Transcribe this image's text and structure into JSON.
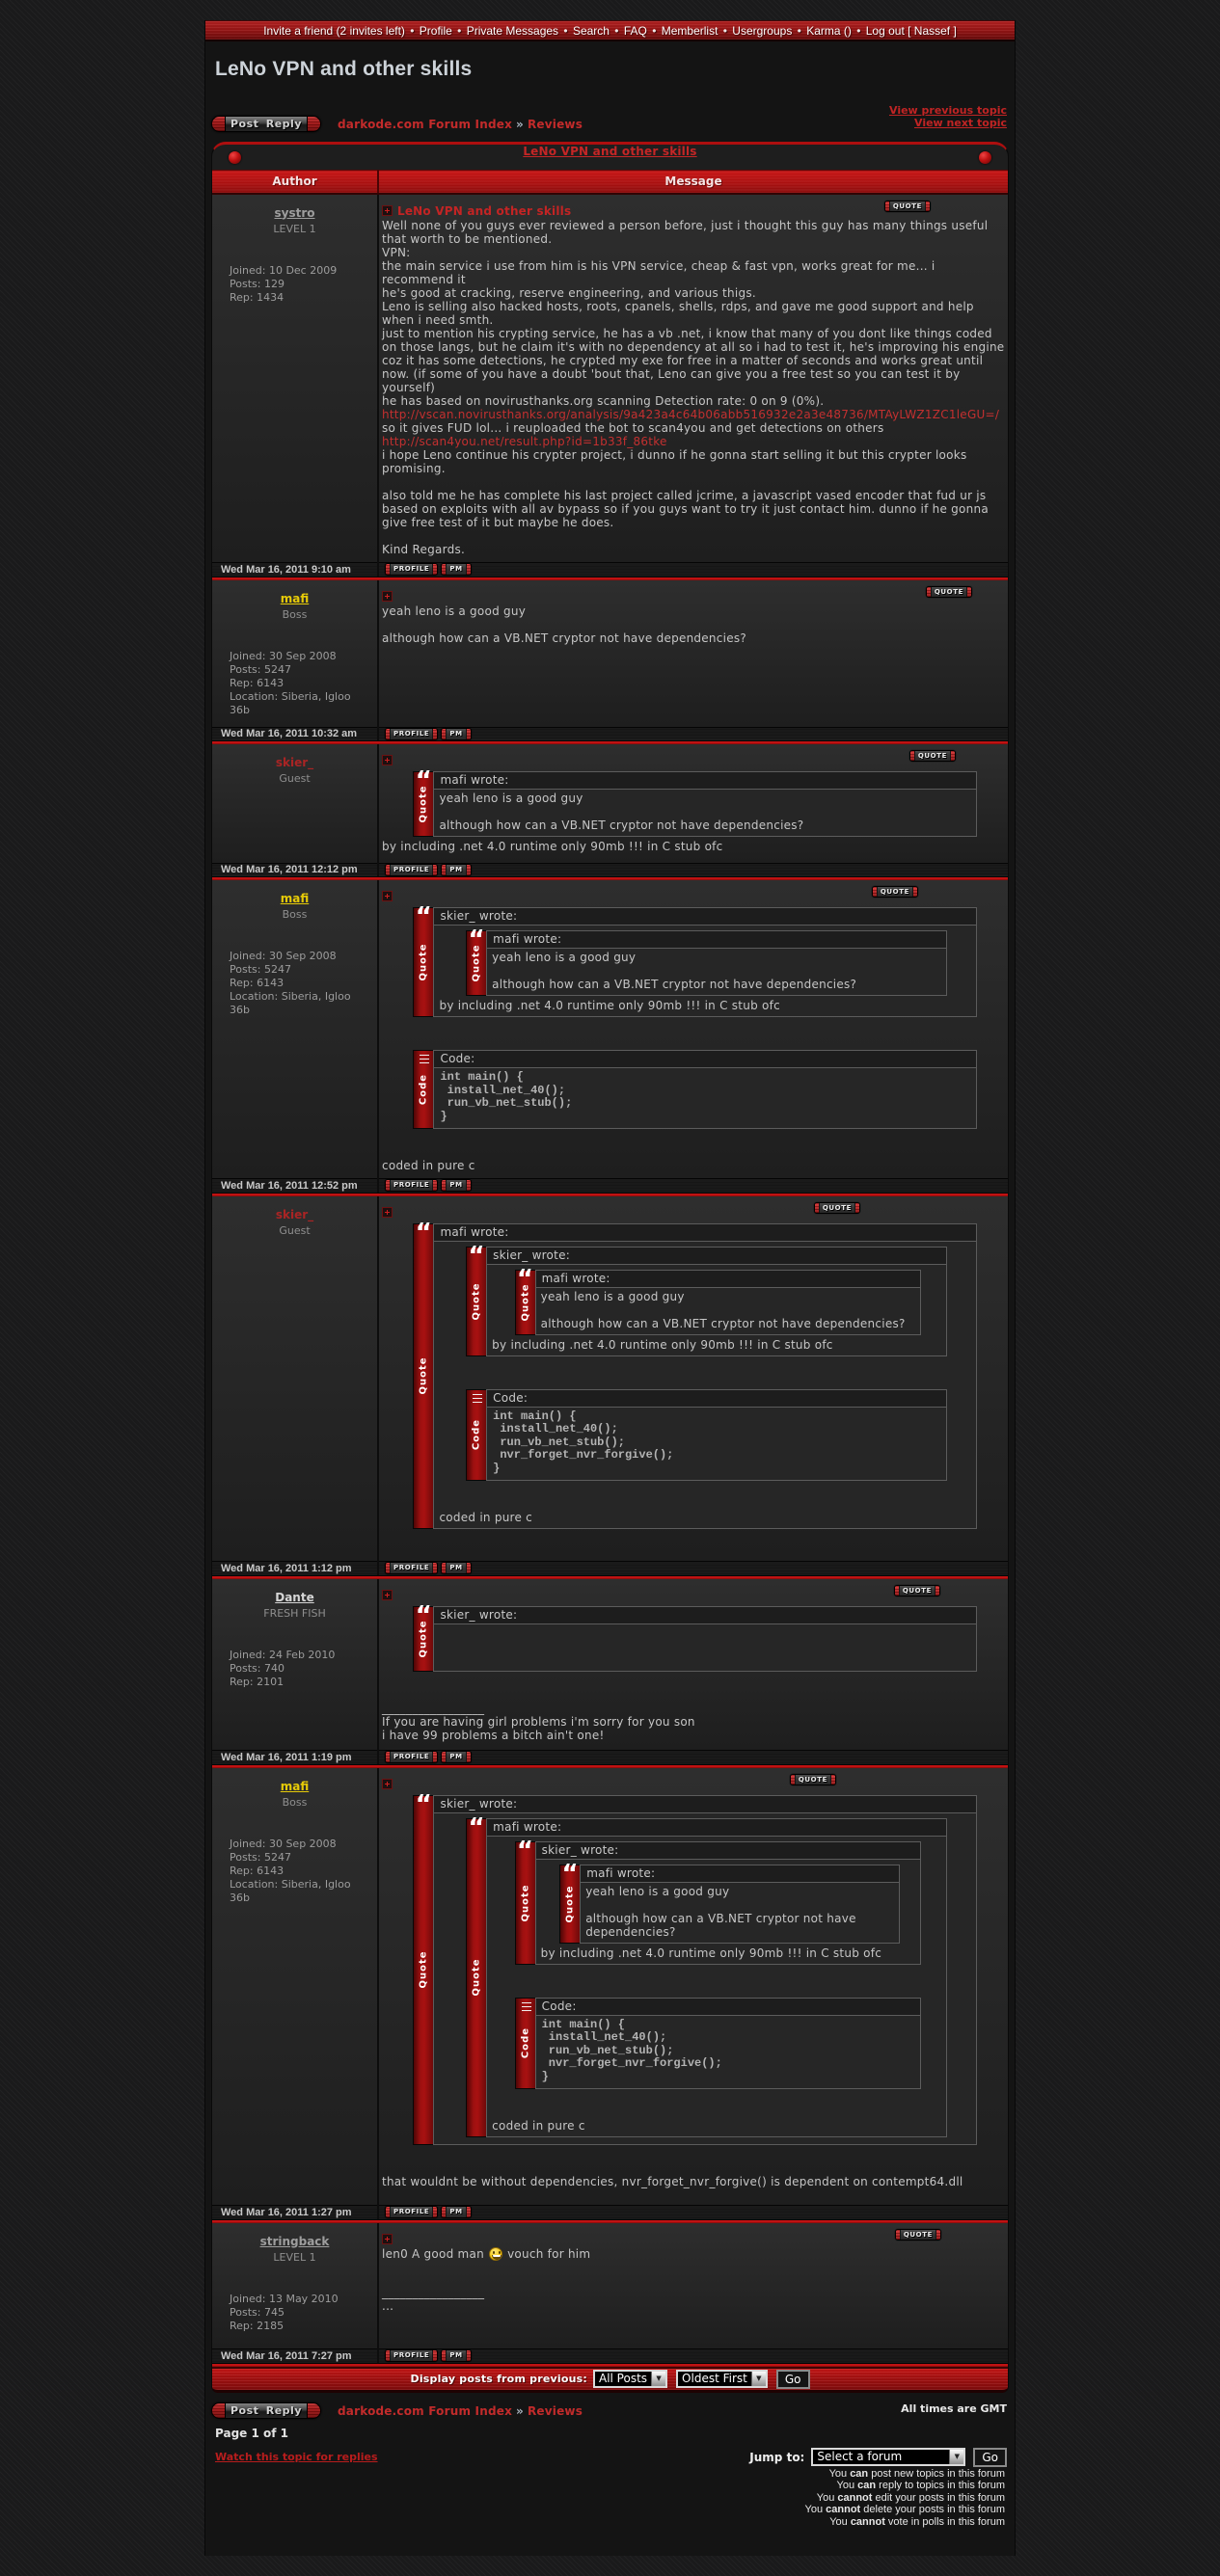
{
  "topnav": {
    "separator": "•",
    "items": [
      "Invite a friend (2 invites left)",
      "Profile",
      "Private Messages",
      "Search",
      "FAQ",
      "Memberlist",
      "Usergroups",
      "Karma ()",
      "Log out [ Nassef ]"
    ]
  },
  "page_title": "LeNo VPN and other skills",
  "toolbar": {
    "post_reply_label": "Post Reply",
    "breadcrumb_index": "darkode.com Forum Index",
    "breadcrumb_separator": "»",
    "breadcrumb_section": "Reviews",
    "view_previous": "View previous topic",
    "view_next": "View next topic"
  },
  "topic_bar": {
    "title": "LeNo VPN and other skills"
  },
  "table_header": {
    "author": "Author",
    "message": "Message"
  },
  "buttons": {
    "quote": "QUOTE",
    "profile": "PROFILE",
    "pm": "PM",
    "go": "Go"
  },
  "quote_block": {
    "bar_label": "Quote",
    "glyph": "“"
  },
  "code_block": {
    "bar_label": "Code",
    "header": "Code:"
  },
  "colors": {
    "accent_red": "#b01010",
    "link_red": "#c33030",
    "body_text": "#c6c6c6"
  },
  "posts": [
    {
      "author": {
        "name": "systro",
        "color": "#9e9e9e",
        "underline": true,
        "rank": "LEVEL 1",
        "details": [
          "Joined: 10 Dec 2009",
          "Posts: 129",
          "Rep: 1434"
        ]
      },
      "subject": "LeNo VPN and other skills",
      "date": "Wed Mar 16, 2011 9:10 am",
      "content": [
        {
          "t": "line",
          "spans": [
            {
              "text": "Well none of you guys ever reviewed a person before, just i thought this guy has many things useful that worth to be mentioned."
            }
          ]
        },
        {
          "t": "line",
          "spans": [
            {
              "text": "VPN:"
            }
          ]
        },
        {
          "t": "line",
          "spans": [
            {
              "text": "the main service i use from him is his VPN service, cheap & fast vpn, works great for me... i recommend it"
            }
          ]
        },
        {
          "t": "line",
          "spans": [
            {
              "text": "he's good at cracking, reserve engineering, and various thigs."
            }
          ]
        },
        {
          "t": "line",
          "spans": [
            {
              "text": "Leno is selling also hacked hosts, roots, cpanels, shells, rdps, and gave me good support and help when i need smth."
            }
          ]
        },
        {
          "t": "line",
          "spans": [
            {
              "text": "just to mention his crypting service, he has a vb .net, i know that many of you dont like things coded on those langs, but he claim it's with no dependency at all so i had to test it, he's improving his engine coz it has some detections, he crypted my exe for free in a matter of seconds and works great until now. (if some of you have a doubt 'bout that, Leno can give you a free test so you can test it by yourself)"
            }
          ]
        },
        {
          "t": "line",
          "spans": [
            {
              "text": "he has based on novirusthanks.org scanning Detection rate: 0 on 9 (0%)."
            }
          ]
        },
        {
          "t": "line",
          "spans": [
            {
              "text": "http://vscan.novirusthanks.org/analysis/9a423a4c64b06abb516932e2a3e48736/MTAyLWZ1ZC1leGU=/",
              "link": true
            }
          ]
        },
        {
          "t": "line",
          "spans": [
            {
              "text": "so it gives FUD lol... i reuploaded the bot to scan4you and get detections on others"
            }
          ]
        },
        {
          "t": "line",
          "spans": [
            {
              "text": "http://scan4you.net/result.php?id=1b33f_86tke",
              "link": true
            }
          ]
        },
        {
          "t": "line",
          "spans": [
            {
              "text": "i hope Leno continue his crypter project, i dunno if he gonna start selling it but this crypter looks promising."
            }
          ]
        },
        {
          "t": "br"
        },
        {
          "t": "line",
          "spans": [
            {
              "text": "also told me he has complete his last project called jcrime, a javascript vased encoder that fud ur js based on exploits with all av bypass so if you guys want to try it just contact him. dunno if he gonna give free test of it but maybe he does."
            }
          ]
        },
        {
          "t": "br"
        },
        {
          "t": "line",
          "spans": [
            {
              "text": "Kind Regards."
            }
          ]
        }
      ]
    },
    {
      "author": {
        "name": "mafi",
        "color": "#e7cb08",
        "underline": true,
        "rank": "Boss",
        "details": [
          "Joined: 30 Sep 2008",
          "Posts: 5247",
          "Rep: 6143",
          "Location: Siberia, Igloo 36b"
        ]
      },
      "subject": null,
      "date": "Wed Mar 16, 2011 10:32 am",
      "content": [
        {
          "t": "line",
          "spans": [
            {
              "text": "yeah leno is a good guy"
            }
          ]
        },
        {
          "t": "br"
        },
        {
          "t": "line",
          "spans": [
            {
              "text": "although how can a VB.NET cryptor not have dependencies?"
            }
          ]
        }
      ]
    },
    {
      "author": {
        "name": "skier_",
        "color": "#aa2424",
        "underline": false,
        "rank": "Guest",
        "details": []
      },
      "subject": null,
      "date": "Wed Mar 16, 2011 12:12 pm",
      "content": [
        {
          "t": "quote",
          "author": "mafi wrote:",
          "children": [
            {
              "t": "line",
              "spans": [
                {
                  "text": "yeah leno is a good guy"
                }
              ]
            },
            {
              "t": "br"
            },
            {
              "t": "line",
              "spans": [
                {
                  "text": "although how can a VB.NET cryptor not have dependencies?"
                }
              ]
            }
          ]
        },
        {
          "t": "line",
          "spans": [
            {
              "text": "by including .net 4.0 runtime only 90mb !!! in C stub ofc"
            }
          ]
        }
      ]
    },
    {
      "author": {
        "name": "mafi",
        "color": "#e7cb08",
        "underline": true,
        "rank": "Boss",
        "details": [
          "Joined: 30 Sep 2008",
          "Posts: 5247",
          "Rep: 6143",
          "Location: Siberia, Igloo 36b"
        ]
      },
      "subject": null,
      "date": "Wed Mar 16, 2011 12:52 pm",
      "content": [
        {
          "t": "quote",
          "author": "skier_ wrote:",
          "children": [
            {
              "t": "quote",
              "author": "mafi wrote:",
              "children": [
                {
                  "t": "line",
                  "spans": [
                    {
                      "text": "yeah leno is a good guy"
                    }
                  ]
                },
                {
                  "t": "br"
                },
                {
                  "t": "line",
                  "spans": [
                    {
                      "text": "although how can a VB.NET cryptor not have dependencies?"
                    }
                  ]
                }
              ]
            },
            {
              "t": "line",
              "spans": [
                {
                  "text": "by including .net 4.0 runtime only 90mb !!! in C stub ofc"
                }
              ]
            }
          ]
        },
        {
          "t": "br"
        },
        {
          "t": "br"
        },
        {
          "t": "code",
          "lines": [
            "int main() {",
            " install_net_40();",
            " run_vb_net_stub();",
            "}"
          ]
        },
        {
          "t": "br"
        },
        {
          "t": "br"
        },
        {
          "t": "line",
          "spans": [
            {
              "text": "coded in pure c"
            }
          ]
        }
      ]
    },
    {
      "author": {
        "name": "skier_",
        "color": "#aa2424",
        "underline": false,
        "rank": "Guest",
        "details": []
      },
      "subject": null,
      "date": "Wed Mar 16, 2011 1:12 pm",
      "content": [
        {
          "t": "quote",
          "author": "mafi wrote:",
          "children": [
            {
              "t": "quote",
              "author": "skier_ wrote:",
              "children": [
                {
                  "t": "quote",
                  "author": "mafi wrote:",
                  "children": [
                    {
                      "t": "line",
                      "spans": [
                        {
                          "text": "yeah leno is a good guy"
                        }
                      ]
                    },
                    {
                      "t": "br"
                    },
                    {
                      "t": "line",
                      "spans": [
                        {
                          "text": "although how can a VB.NET cryptor not have dependencies?"
                        }
                      ]
                    }
                  ]
                },
                {
                  "t": "line",
                  "spans": [
                    {
                      "text": "by including .net 4.0 runtime only 90mb !!! in C stub ofc"
                    }
                  ]
                }
              ]
            },
            {
              "t": "br"
            },
            {
              "t": "br"
            },
            {
              "t": "code",
              "lines": [
                "int main() {",
                " install_net_40();",
                " run_vb_net_stub();",
                " nvr_forget_nvr_forgive();",
                "}"
              ]
            },
            {
              "t": "br"
            },
            {
              "t": "br"
            },
            {
              "t": "line",
              "spans": [
                {
                  "text": "coded in pure c"
                }
              ]
            }
          ]
        }
      ]
    },
    {
      "author": {
        "name": "Dante",
        "color": "#d6d6d6",
        "underline": true,
        "rank": "FRESH FISH",
        "details": [
          "Joined: 24 Feb 2010",
          "Posts: 740",
          "Rep: 2101"
        ]
      },
      "subject": null,
      "date": "Wed Mar 16, 2011 1:19 pm",
      "content": [
        {
          "t": "quote",
          "author": "skier_ wrote:",
          "children": [
            {
              "t": "br"
            },
            {
              "t": "br"
            },
            {
              "t": "br"
            }
          ]
        },
        {
          "t": "sig",
          "lines": [
            "If you are having girl problems i'm sorry for you son",
            "i have 99 problems a bitch ain't one!"
          ]
        }
      ]
    },
    {
      "author": {
        "name": "mafi",
        "color": "#e7cb08",
        "underline": true,
        "rank": "Boss",
        "details": [
          "Joined: 30 Sep 2008",
          "Posts: 5247",
          "Rep: 6143",
          "Location: Siberia, Igloo 36b"
        ]
      },
      "subject": null,
      "date": "Wed Mar 16, 2011 1:27 pm",
      "content": [
        {
          "t": "quote",
          "author": "skier_ wrote:",
          "children": [
            {
              "t": "quote",
              "author": "mafi wrote:",
              "children": [
                {
                  "t": "quote",
                  "author": "skier_ wrote:",
                  "children": [
                    {
                      "t": "quote",
                      "author": "mafi wrote:",
                      "children": [
                        {
                          "t": "line",
                          "spans": [
                            {
                              "text": "yeah leno is a good guy"
                            }
                          ]
                        },
                        {
                          "t": "br"
                        },
                        {
                          "t": "line",
                          "spans": [
                            {
                              "text": "although how can a VB.NET cryptor not have dependencies?"
                            }
                          ]
                        }
                      ]
                    },
                    {
                      "t": "line",
                      "spans": [
                        {
                          "text": "by including .net 4.0 runtime only 90mb !!! in C stub ofc"
                        }
                      ]
                    }
                  ]
                },
                {
                  "t": "br"
                },
                {
                  "t": "br"
                },
                {
                  "t": "code",
                  "lines": [
                    "int main() {",
                    " install_net_40();",
                    " run_vb_net_stub();",
                    " nvr_forget_nvr_forgive();",
                    "}"
                  ]
                },
                {
                  "t": "br"
                },
                {
                  "t": "br"
                },
                {
                  "t": "line",
                  "spans": [
                    {
                      "text": "coded in pure c"
                    }
                  ]
                }
              ]
            }
          ]
        },
        {
          "t": "br"
        },
        {
          "t": "br"
        },
        {
          "t": "line",
          "spans": [
            {
              "text": "that wouldnt be without dependencies, nvr_forget_nvr_forgive() is dependent on contempt64.dll"
            }
          ]
        }
      ]
    },
    {
      "author": {
        "name": "stringback",
        "color": "#9e9e9e",
        "underline": true,
        "rank": "LEVEL 1",
        "details": [
          "Joined: 13 May 2010",
          "Posts: 745",
          "Rep: 2185"
        ]
      },
      "subject": null,
      "date": "Wed Mar 16, 2011 7:27 pm",
      "content": [
        {
          "t": "line",
          "spans": [
            {
              "text": "len0 A good man "
            },
            {
              "smiley": "biggrin"
            },
            {
              "text": " vouch for him"
            }
          ]
        },
        {
          "t": "sig",
          "lines": [
            "..."
          ]
        }
      ]
    }
  ],
  "signature_divider": "_________________",
  "display_bar": {
    "label": "Display posts from previous:",
    "posts_filter": "All Posts",
    "sort_order": "Oldest First"
  },
  "footer": {
    "all_times": "All times are GMT",
    "page_of": "Page 1 of 1",
    "watch_link": "Watch this topic for replies",
    "jump_to_label": "Jump to:",
    "jump_to_value": "Select a forum",
    "permissions": [
      {
        "pre": "You ",
        "verb": "can",
        "rest": " post new topics in this forum"
      },
      {
        "pre": "You ",
        "verb": "can",
        "rest": " reply to topics in this forum"
      },
      {
        "pre": "You ",
        "verb": "cannot",
        "rest": " edit your posts in this forum"
      },
      {
        "pre": "You ",
        "verb": "cannot",
        "rest": " delete your posts in this forum"
      },
      {
        "pre": "You ",
        "verb": "cannot",
        "rest": " vote in polls in this forum"
      }
    ]
  }
}
